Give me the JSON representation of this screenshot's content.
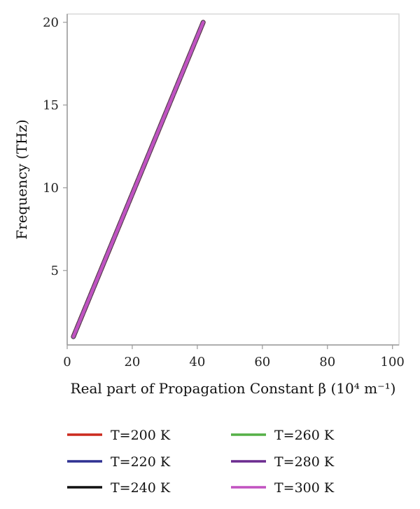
{
  "chart_data": {
    "type": "line",
    "title": "",
    "xlabel": "Real part of Propagation Constant β (10⁴ m⁻¹)",
    "ylabel": "Frequency (THz)",
    "xlim": [
      0,
      102
    ],
    "ylim": [
      0.5,
      20.5
    ],
    "xticks": [
      0,
      20,
      40,
      60,
      80,
      100
    ],
    "yticks": [
      5,
      10,
      15,
      20
    ],
    "grid": false,
    "legend_position": "bottom",
    "series": [
      {
        "name": "T=200 K",
        "color": "#cc2a1e",
        "x": [
          1.9,
          41.8
        ],
        "y": [
          1.0,
          20.0
        ]
      },
      {
        "name": "T=220 K",
        "color": "#2e3192",
        "x": [
          1.9,
          41.8
        ],
        "y": [
          1.0,
          20.0
        ]
      },
      {
        "name": "T=240 K",
        "color": "#111111",
        "x": [
          1.9,
          41.8
        ],
        "y": [
          1.0,
          20.0
        ]
      },
      {
        "name": "T=260 K",
        "color": "#55b047",
        "x": [
          1.9,
          41.8
        ],
        "y": [
          1.0,
          20.0
        ]
      },
      {
        "name": "T=280 K",
        "color": "#6b2b8f",
        "x": [
          1.9,
          41.8
        ],
        "y": [
          1.0,
          20.0
        ]
      },
      {
        "name": "T=300 K",
        "color": "#c252c1",
        "x": [
          1.9,
          41.8
        ],
        "y": [
          1.0,
          20.0
        ]
      }
    ]
  }
}
